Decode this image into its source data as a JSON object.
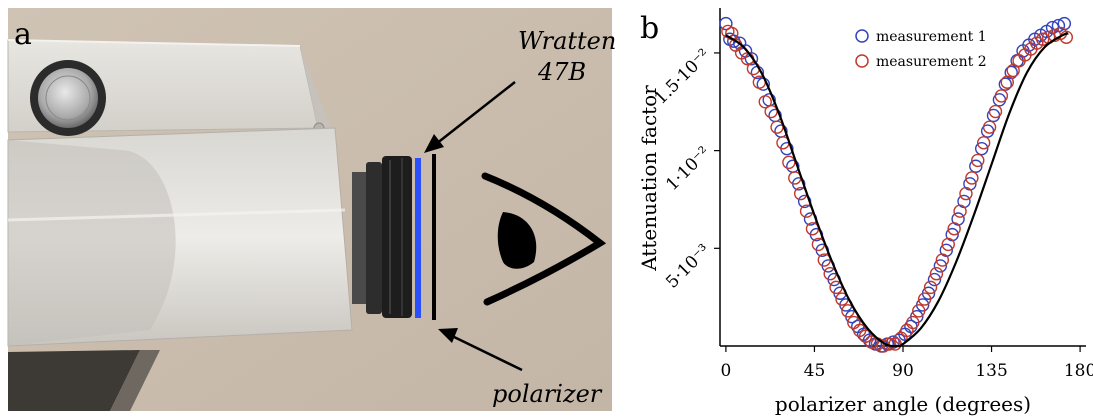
{
  "panel_a": {
    "letter": "a",
    "label_filter_line1": "Wratten",
    "label_filter_line2": "47B",
    "label_polarizer": "polarizer",
    "colors": {
      "filter_blue": "#2a4fff",
      "polarizer_black": "#000000",
      "background_wall": "#c9bdae",
      "housing": "#dedbd5"
    },
    "icons": [
      "eye-icon",
      "arrow-to-filter",
      "arrow-to-polarizer"
    ]
  },
  "panel_b": {
    "letter": "b"
  },
  "chart_data": {
    "type": "scatter",
    "xlabel": "polarizer angle (degrees)",
    "ylabel": "Attenuation factor",
    "xlim": [
      -3,
      183
    ],
    "ylim": [
      0,
      0.0173
    ],
    "x_ticks": [
      0,
      45,
      90,
      135,
      180
    ],
    "x_tick_labels": [
      "0",
      "45",
      "90",
      "135",
      "180"
    ],
    "y_ticks": [
      0.005,
      0.01,
      0.015
    ],
    "y_tick_labels": [
      "5·10⁻³",
      "1·10⁻²",
      "1.5·10⁻²"
    ],
    "grid": false,
    "legend_position": "top-right",
    "series": [
      {
        "name": "measurement 1",
        "color": "#3344bb",
        "marker": "open-circle",
        "x": [
          0,
          2,
          4,
          7,
          10,
          13,
          16,
          19,
          22,
          25,
          28,
          31,
          34,
          37,
          40,
          43,
          46,
          49,
          52,
          55,
          58,
          61,
          64,
          67,
          70,
          73,
          76,
          79,
          82,
          85,
          88,
          91,
          94,
          97,
          100,
          103,
          106,
          109,
          112,
          115,
          118,
          121,
          124,
          127,
          130,
          133,
          136,
          139,
          142,
          145,
          148,
          151,
          154,
          157,
          160,
          163,
          166,
          169,
          172
        ],
        "y": [
          0.0165,
          0.0157,
          0.0156,
          0.0155,
          0.0151,
          0.0147,
          0.014,
          0.0134,
          0.0126,
          0.0118,
          0.011,
          0.0101,
          0.0092,
          0.0083,
          0.0074,
          0.0065,
          0.0057,
          0.0049,
          0.0041,
          0.0034,
          0.0027,
          0.0021,
          0.0015,
          0.001,
          0.0006,
          0.0003,
          0.0001,
          0.0,
          0.0001,
          0.0002,
          0.0003,
          0.0006,
          0.001,
          0.0015,
          0.0021,
          0.0027,
          0.0034,
          0.0041,
          0.0049,
          0.0057,
          0.0065,
          0.0074,
          0.0083,
          0.0092,
          0.0101,
          0.011,
          0.0118,
          0.0126,
          0.0134,
          0.014,
          0.0146,
          0.0151,
          0.0154,
          0.0157,
          0.0159,
          0.0161,
          0.0163,
          0.0164,
          0.0165
        ]
      },
      {
        "name": "measurement 2",
        "color": "#c0392b",
        "marker": "open-circle",
        "x": [
          1,
          3,
          5,
          8,
          11,
          14,
          17,
          20,
          23,
          26,
          29,
          32,
          35,
          38,
          41,
          44,
          47,
          50,
          53,
          56,
          59,
          62,
          65,
          68,
          71,
          74,
          77,
          80,
          83,
          86,
          89,
          92,
          95,
          98,
          101,
          104,
          107,
          110,
          113,
          116,
          119,
          122,
          125,
          128,
          131,
          134,
          137,
          140,
          143,
          146,
          149,
          152,
          155,
          158,
          161,
          164,
          167,
          170,
          173
        ],
        "y": [
          0.0161,
          0.016,
          0.0154,
          0.015,
          0.0147,
          0.0142,
          0.0135,
          0.0125,
          0.012,
          0.0112,
          0.0104,
          0.0094,
          0.0086,
          0.0078,
          0.0069,
          0.006,
          0.0052,
          0.0044,
          0.0037,
          0.003,
          0.0024,
          0.0018,
          0.0012,
          0.0008,
          0.0005,
          0.0002,
          0.0001,
          0.0,
          0.0001,
          0.0001,
          0.0004,
          0.0008,
          0.0012,
          0.0018,
          0.0024,
          0.003,
          0.0037,
          0.0044,
          0.0052,
          0.006,
          0.0069,
          0.0078,
          0.0086,
          0.0095,
          0.0104,
          0.0112,
          0.012,
          0.0128,
          0.0135,
          0.0141,
          0.0146,
          0.0149,
          0.0152,
          0.0155,
          0.0157,
          0.0158,
          0.0159,
          0.016,
          0.0158
        ]
      },
      {
        "name": "",
        "color": "#000000",
        "marker": "none",
        "line": "solid",
        "x": [
          0,
          9,
          18,
          27,
          36,
          45,
          54,
          63,
          72,
          81,
          87,
          90,
          99,
          108,
          117,
          126,
          135,
          144,
          153,
          162,
          171,
          174
        ],
        "y": [
          0.0159,
          0.0153,
          0.014,
          0.0119,
          0.0093,
          0.0067,
          0.0043,
          0.0023,
          0.0009,
          0.0001,
          0.0,
          0.0001,
          0.0009,
          0.0023,
          0.0043,
          0.0067,
          0.0093,
          0.0119,
          0.014,
          0.0153,
          0.0159,
          0.016
        ]
      }
    ]
  }
}
